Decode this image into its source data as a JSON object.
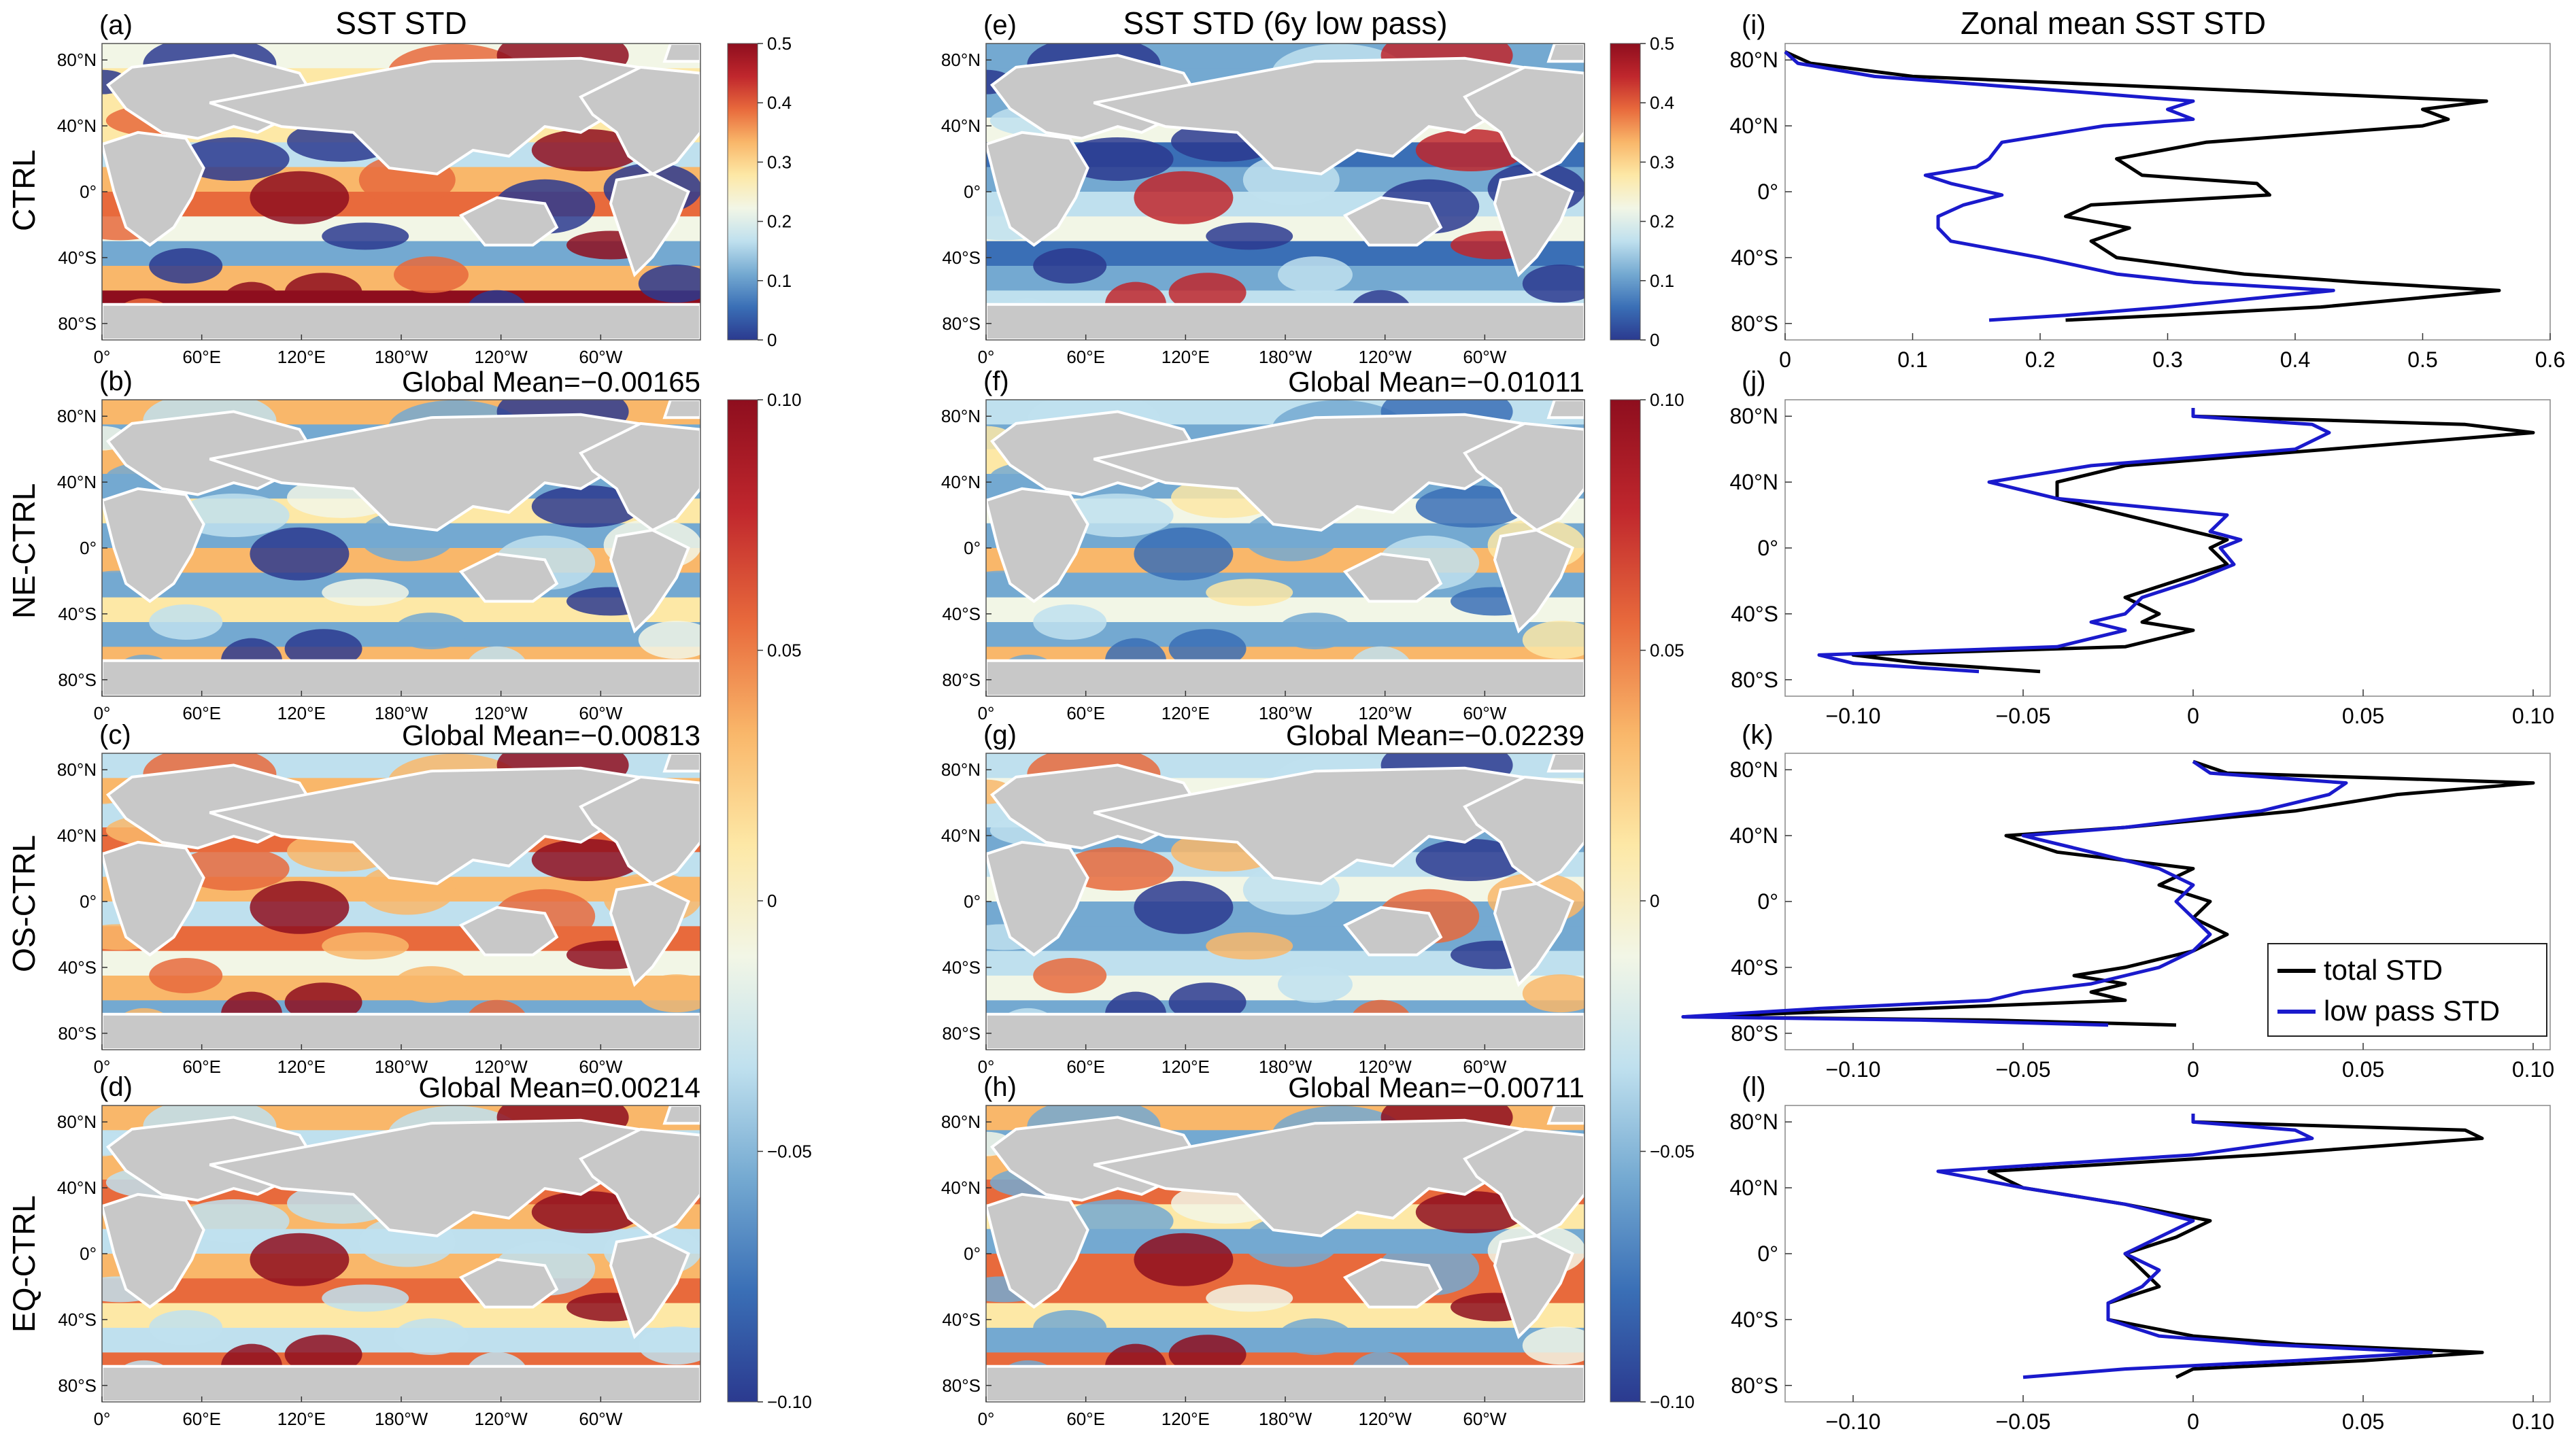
{
  "rows": [
    "CTRL",
    "NE-CTRL",
    "OS-CTRL",
    "EQ-CTRL"
  ],
  "colors": {
    "land": "#c8c8c8",
    "coast": "#ffffff",
    "total": "#000000",
    "lowpass": "#1a1acc",
    "cmap": [
      "#2b3a8f",
      "#3a6fb6",
      "#74a9d1",
      "#bfe0ee",
      "#f2f6e6",
      "#fde8a6",
      "#f9b76a",
      "#e86a3c",
      "#c0272d",
      "#8e0e1e"
    ]
  },
  "maps": {
    "lat_ticks": [
      "80°N",
      "40°N",
      "0°",
      "40°S",
      "80°S"
    ],
    "lon_ticks": [
      "0°",
      "60°E",
      "120°E",
      "180°W",
      "120°W",
      "60°W"
    ],
    "panels": [
      {
        "id": "a",
        "label": "(a)",
        "title": "SST STD",
        "mean": "",
        "kind": "std",
        "pattern": [
          0.2,
          0.35,
          0.5,
          0.45
        ]
      },
      {
        "id": "e",
        "label": "(e)",
        "title": "SST STD (6y low pass)",
        "mean": "",
        "kind": "std",
        "pattern": [
          0.1,
          0.15,
          0.2,
          0.4
        ]
      },
      {
        "id": "b",
        "label": "(b)",
        "title": "",
        "mean": "Global Mean=−0.00165",
        "kind": "diff",
        "pattern": [
          0.02,
          -0.05,
          0.04,
          -0.09
        ]
      },
      {
        "id": "f",
        "label": "(f)",
        "title": "",
        "mean": "Global Mean=−0.01011",
        "kind": "diff",
        "pattern": [
          -0.02,
          -0.06,
          0.03,
          -0.08
        ]
      },
      {
        "id": "c",
        "label": "(c)",
        "title": "",
        "mean": "Global Mean=−0.00813",
        "kind": "diff",
        "pattern": [
          -0.03,
          0.03,
          -0.05,
          0.08
        ]
      },
      {
        "id": "g",
        "label": "(g)",
        "title": "",
        "mean": "Global Mean=−0.02239",
        "kind": "diff",
        "pattern": [
          -0.04,
          -0.02,
          -0.06,
          -0.09
        ]
      },
      {
        "id": "d",
        "label": "(d)",
        "title": "",
        "mean": "Global Mean=0.00214",
        "kind": "diff",
        "pattern": [
          0.03,
          -0.04,
          0.05,
          0.09
        ]
      },
      {
        "id": "h",
        "label": "(h)",
        "title": "",
        "mean": "Global Mean=−0.00711",
        "kind": "diff",
        "pattern": [
          0.02,
          -0.05,
          0.06,
          0.09
        ]
      }
    ]
  },
  "colorbars": [
    {
      "id": "cb1",
      "ticks": [
        "0.5",
        "0.4",
        "0.3",
        "0.2",
        "0.1",
        "0"
      ]
    },
    {
      "id": "cb2",
      "ticks": [
        "0.5",
        "0.4",
        "0.3",
        "0.2",
        "0.1",
        "0"
      ]
    },
    {
      "id": "cb3",
      "ticks": [
        "0.10",
        "0.05",
        "0",
        "−0.05",
        "−0.10"
      ]
    },
    {
      "id": "cb4",
      "ticks": [
        "0.10",
        "0.05",
        "0",
        "−0.05",
        "−0.10"
      ]
    }
  ],
  "legend": {
    "total": "total STD",
    "lowpass": "low pass STD"
  },
  "chart_data": [
    {
      "type": "line",
      "id": "i",
      "label": "(i)",
      "title": "Zonal mean SST STD",
      "xlim": [
        0,
        0.6
      ],
      "ylim": [
        -90,
        90
      ],
      "xticks": [
        "0",
        "0.1",
        "0.2",
        "0.3",
        "0.4",
        "0.5",
        "0.6"
      ],
      "yticks": [
        "80°N",
        "40°N",
        "0°",
        "40°S",
        "80°S"
      ],
      "series": [
        {
          "name": "total STD",
          "lat": [
            -78,
            -75,
            -70,
            -60,
            -55,
            -50,
            -40,
            -30,
            -22,
            -15,
            -8,
            -2,
            5,
            10,
            15,
            20,
            30,
            40,
            44,
            50,
            55,
            60,
            70,
            78,
            85
          ],
          "values": [
            0.22,
            0.3,
            0.42,
            0.56,
            0.45,
            0.36,
            0.26,
            0.24,
            0.27,
            0.22,
            0.24,
            0.38,
            0.37,
            0.28,
            0.27,
            0.26,
            0.33,
            0.5,
            0.52,
            0.5,
            0.55,
            0.4,
            0.1,
            0.02,
            0.0
          ]
        },
        {
          "name": "low pass STD",
          "lat": [
            -78,
            -75,
            -70,
            -60,
            -55,
            -50,
            -40,
            -30,
            -22,
            -15,
            -8,
            -2,
            5,
            10,
            15,
            20,
            30,
            40,
            44,
            50,
            55,
            60,
            70,
            78,
            85
          ],
          "values": [
            0.16,
            0.22,
            0.3,
            0.43,
            0.32,
            0.26,
            0.2,
            0.13,
            0.12,
            0.12,
            0.14,
            0.17,
            0.13,
            0.11,
            0.15,
            0.16,
            0.17,
            0.25,
            0.32,
            0.3,
            0.32,
            0.24,
            0.07,
            0.01,
            0.0
          ]
        }
      ]
    },
    {
      "type": "line",
      "id": "j",
      "label": "(j)",
      "title": "",
      "xlim": [
        -0.12,
        0.105
      ],
      "ylim": [
        -90,
        90
      ],
      "xticks": [
        "−0.10",
        "−0.05",
        "0",
        "0.05",
        "0.10"
      ],
      "yticks": [
        "80°N",
        "40°N",
        "0°",
        "40°S",
        "80°S"
      ],
      "series": [
        {
          "name": "total STD",
          "lat": [
            -75,
            -70,
            -65,
            -60,
            -50,
            -45,
            -40,
            -30,
            -20,
            -10,
            0,
            5,
            10,
            20,
            30,
            40,
            50,
            60,
            70,
            75,
            80,
            85
          ],
          "values": [
            -0.045,
            -0.08,
            -0.1,
            -0.02,
            0.0,
            -0.015,
            -0.01,
            -0.02,
            -0.005,
            0.01,
            0.005,
            0.01,
            0.0,
            -0.02,
            -0.04,
            -0.04,
            -0.02,
            0.04,
            0.1,
            0.08,
            0.0,
            0.0
          ]
        },
        {
          "name": "low pass STD",
          "lat": [
            -75,
            -70,
            -65,
            -60,
            -50,
            -45,
            -40,
            -30,
            -20,
            -10,
            0,
            5,
            10,
            20,
            30,
            40,
            50,
            60,
            70,
            75,
            80,
            85
          ],
          "values": [
            -0.063,
            -0.1,
            -0.11,
            -0.04,
            -0.02,
            -0.03,
            -0.02,
            -0.015,
            0.0,
            0.012,
            0.008,
            0.014,
            0.005,
            0.01,
            -0.04,
            -0.06,
            -0.03,
            0.03,
            0.04,
            0.035,
            0.0,
            0.0
          ]
        }
      ]
    },
    {
      "type": "line",
      "id": "k",
      "label": "(k)",
      "title": "",
      "xlim": [
        -0.12,
        0.105
      ],
      "ylim": [
        -90,
        90
      ],
      "xticks": [
        "−0.10",
        "−0.05",
        "0",
        "0.05",
        "0.10"
      ],
      "yticks": [
        "80°N",
        "40°N",
        "0°",
        "40°S",
        "80°S"
      ],
      "series": [
        {
          "name": "total STD",
          "lat": [
            -75,
            -72,
            -70,
            -65,
            -60,
            -55,
            -50,
            -45,
            -40,
            -30,
            -20,
            -10,
            0,
            10,
            20,
            30,
            40,
            45,
            55,
            65,
            72,
            78,
            85
          ],
          "values": [
            -0.005,
            -0.06,
            -0.15,
            -0.08,
            -0.02,
            -0.03,
            -0.02,
            -0.035,
            -0.02,
            0.0,
            0.01,
            0.0,
            0.005,
            -0.01,
            0.0,
            -0.04,
            -0.055,
            -0.02,
            0.03,
            0.06,
            0.1,
            0.01,
            0.0
          ]
        },
        {
          "name": "low pass STD",
          "lat": [
            -75,
            -72,
            -70,
            -65,
            -60,
            -55,
            -50,
            -45,
            -40,
            -30,
            -20,
            -10,
            0,
            10,
            20,
            30,
            40,
            45,
            55,
            65,
            72,
            78,
            85
          ],
          "values": [
            -0.025,
            -0.08,
            -0.15,
            -0.11,
            -0.06,
            -0.05,
            -0.03,
            -0.02,
            -0.01,
            0.0,
            0.005,
            0.0,
            -0.005,
            0.0,
            -0.01,
            -0.03,
            -0.05,
            -0.02,
            0.02,
            0.04,
            0.045,
            0.005,
            0.0
          ]
        }
      ]
    },
    {
      "type": "line",
      "id": "l",
      "label": "(l)",
      "title": "",
      "xlim": [
        -0.12,
        0.105
      ],
      "ylim": [
        -90,
        90
      ],
      "xticks": [
        "−0.10",
        "−0.05",
        "0",
        "0.05",
        "0.10"
      ],
      "yticks": [
        "80°N",
        "40°N",
        "0°",
        "40°S",
        "80°S"
      ],
      "series": [
        {
          "name": "total STD",
          "lat": [
            -75,
            -70,
            -65,
            -60,
            -55,
            -50,
            -40,
            -30,
            -20,
            -10,
            0,
            10,
            20,
            30,
            40,
            50,
            60,
            70,
            75,
            80,
            85
          ],
          "values": [
            -0.005,
            0.0,
            0.05,
            0.085,
            0.03,
            0.0,
            -0.025,
            -0.025,
            -0.01,
            -0.015,
            -0.02,
            -0.005,
            0.005,
            -0.02,
            -0.05,
            -0.06,
            0.02,
            0.085,
            0.08,
            0.0,
            0.0
          ]
        },
        {
          "name": "low pass STD",
          "lat": [
            -75,
            -70,
            -65,
            -60,
            -55,
            -50,
            -40,
            -30,
            -20,
            -10,
            0,
            10,
            20,
            30,
            40,
            50,
            60,
            70,
            75,
            80,
            85
          ],
          "values": [
            -0.05,
            -0.02,
            0.03,
            0.07,
            0.02,
            -0.01,
            -0.025,
            -0.025,
            -0.015,
            -0.01,
            -0.02,
            -0.01,
            0.0,
            -0.02,
            -0.05,
            -0.075,
            0.0,
            0.035,
            0.03,
            0.0,
            0.0
          ]
        }
      ]
    }
  ]
}
